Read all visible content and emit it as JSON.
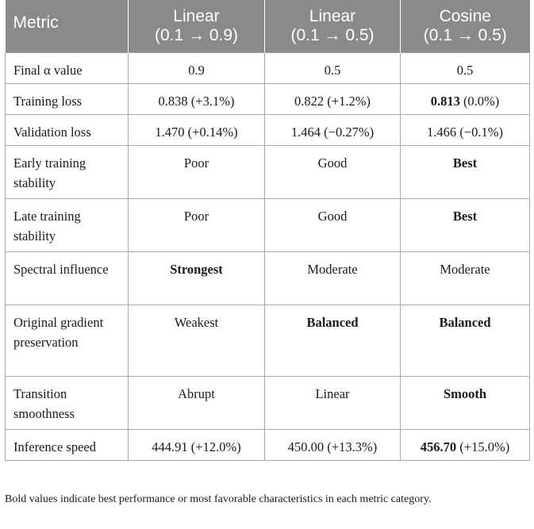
{
  "table": {
    "headers": {
      "metric": "Metric",
      "columns": [
        {
          "title": "Linear",
          "subtitle": "(0.1 → 0.9)"
        },
        {
          "title": "Linear",
          "subtitle": "(0.1 → 0.5)"
        },
        {
          "title": "Cosine",
          "subtitle": "(0.1 → 0.5)"
        }
      ]
    },
    "rows": [
      {
        "label": "Final α value",
        "cells": [
          {
            "bold": "",
            "rest": "0.9"
          },
          {
            "bold": "",
            "rest": "0.5"
          },
          {
            "bold": "",
            "rest": "0.5"
          }
        ]
      },
      {
        "label": "Training loss",
        "cells": [
          {
            "bold": "",
            "rest": "0.838 (+3.1%)"
          },
          {
            "bold": "",
            "rest": "0.822 (+1.2%)"
          },
          {
            "bold": "0.813",
            "rest": " (0.0%)"
          }
        ]
      },
      {
        "label": "Validation loss",
        "cells": [
          {
            "bold": "",
            "rest": "1.470 (+0.14%)"
          },
          {
            "bold": "",
            "rest": "1.464 (−0.27%)"
          },
          {
            "bold": "",
            "rest": "1.466 (−0.1%)"
          }
        ]
      },
      {
        "label": "Early training stability",
        "cells": [
          {
            "bold": "",
            "rest": "Poor"
          },
          {
            "bold": "",
            "rest": "Good"
          },
          {
            "bold": "Best",
            "rest": ""
          }
        ]
      },
      {
        "label": "Late training stability",
        "cells": [
          {
            "bold": "",
            "rest": "Poor"
          },
          {
            "bold": "",
            "rest": "Good"
          },
          {
            "bold": "Best",
            "rest": ""
          }
        ]
      },
      {
        "label": "Spectral influence",
        "cells": [
          {
            "bold": "Strongest",
            "rest": ""
          },
          {
            "bold": "",
            "rest": "Moderate"
          },
          {
            "bold": "",
            "rest": "Moderate"
          }
        ]
      },
      {
        "label": "Original gradient preservation",
        "cells": [
          {
            "bold": "",
            "rest": "Weakest"
          },
          {
            "bold": "Balanced",
            "rest": ""
          },
          {
            "bold": "Balanced",
            "rest": ""
          }
        ]
      },
      {
        "label": "Transition smoothness",
        "cells": [
          {
            "bold": "",
            "rest": "Abrupt"
          },
          {
            "bold": "",
            "rest": "Linear"
          },
          {
            "bold": "Smooth",
            "rest": ""
          }
        ]
      },
      {
        "label": "Inference speed",
        "cells": [
          {
            "bold": "",
            "rest": "444.91 (+12.0%)"
          },
          {
            "bold": "",
            "rest": "450.00 (+13.3%)"
          },
          {
            "bold": "456.70",
            "rest": " (+15.0%)"
          }
        ]
      }
    ]
  },
  "footnote": "Bold values indicate best performance or most favorable characteristics in each metric category.",
  "colors": {
    "header_background": "#8a8a8a",
    "header_text": "#ffffff",
    "grid_lines": "#a9a9a9",
    "body_text": "#1a1a1a"
  }
}
